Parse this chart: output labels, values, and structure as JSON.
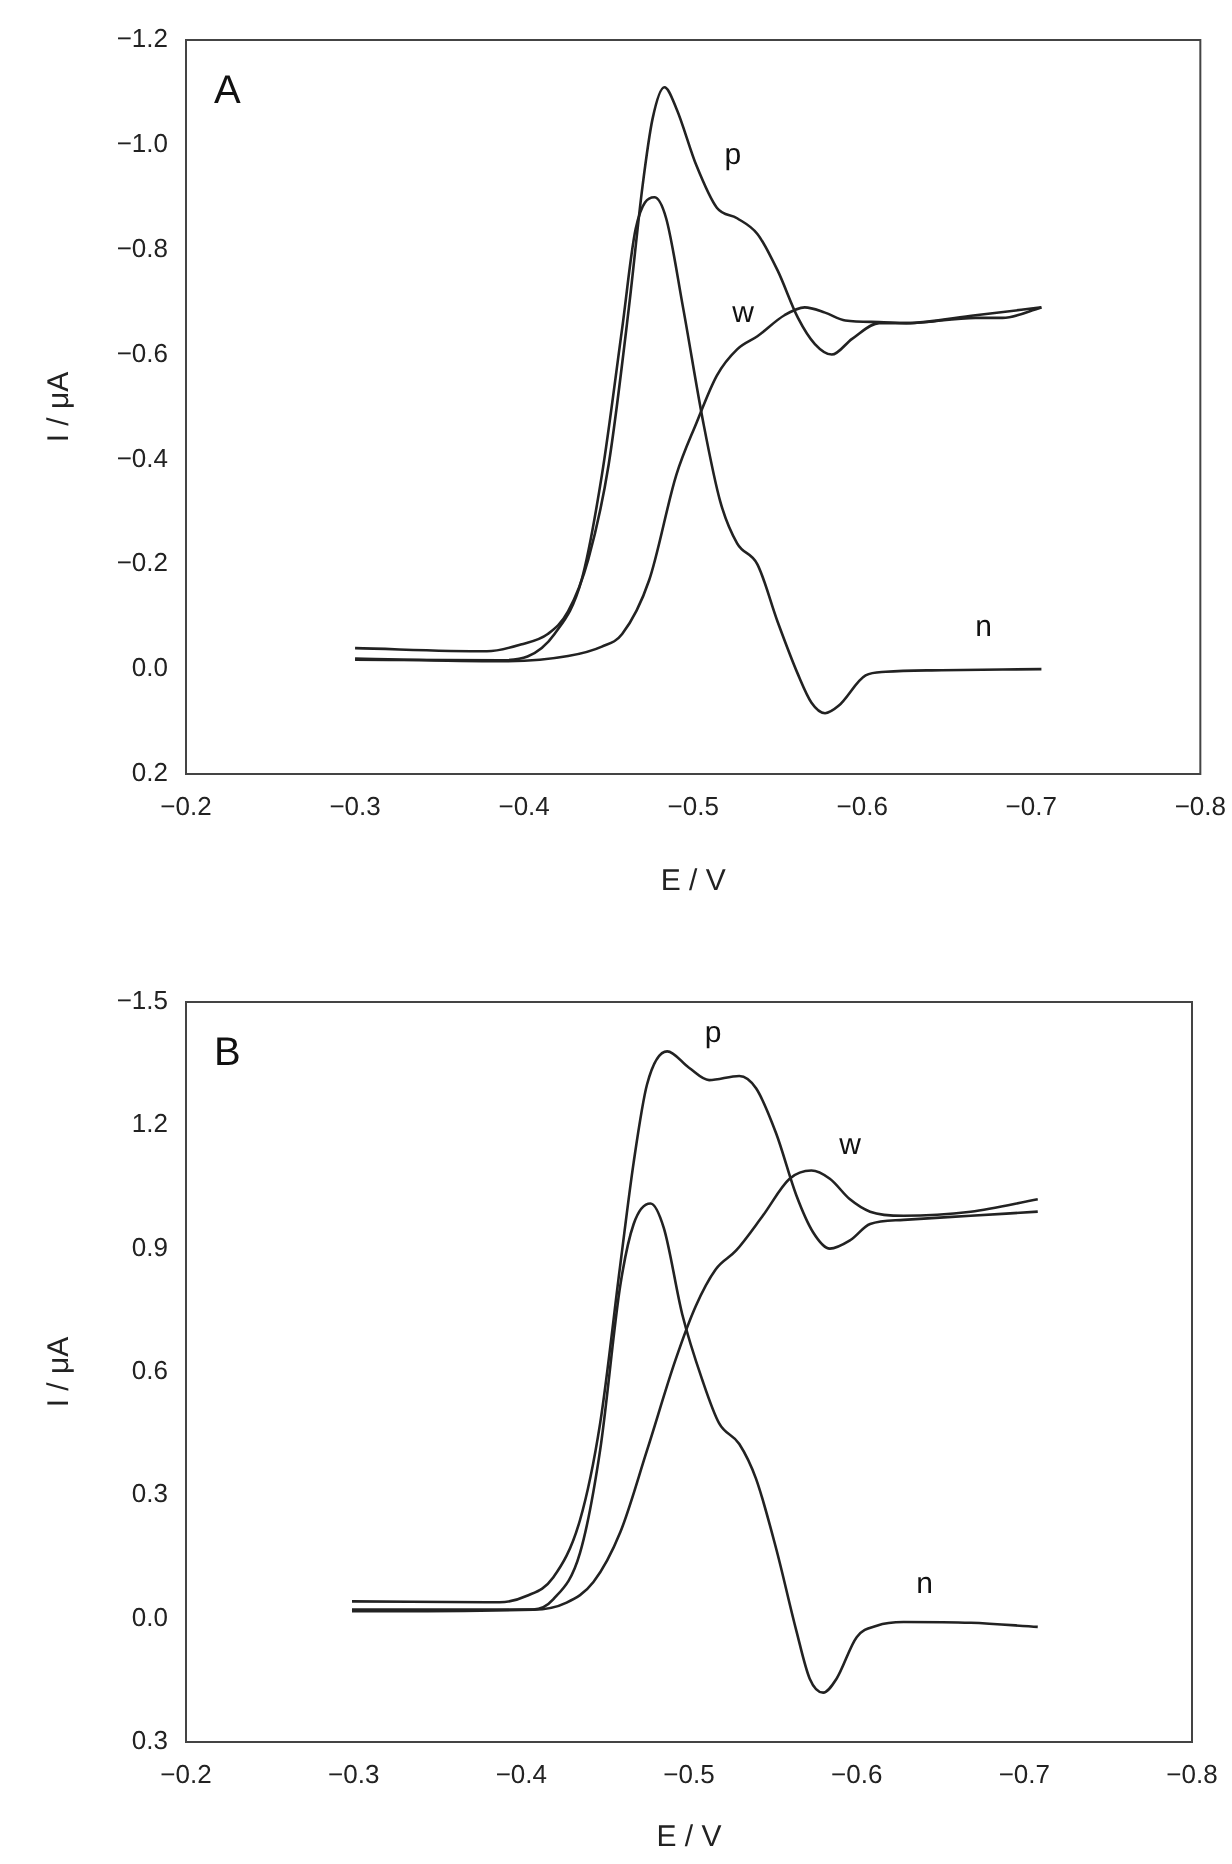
{
  "chart_data": [
    {
      "type": "line",
      "title": "A",
      "xlabel": "E / V",
      "ylabel": "I / μA",
      "marker": "none",
      "xlim": [
        -0.2,
        -0.8
      ],
      "ylim": [
        0.2,
        -1.2
      ],
      "xticks": [
        {
          "value": -0.2,
          "label": "−0.2"
        },
        {
          "value": -0.3,
          "label": "−0.3"
        },
        {
          "value": -0.4,
          "label": "−0.4"
        },
        {
          "value": -0.5,
          "label": "−0.5"
        },
        {
          "value": -0.6,
          "label": "−0.6"
        },
        {
          "value": -0.7,
          "label": "−0.7"
        },
        {
          "value": -0.8,
          "label": "−0.8"
        }
      ],
      "yticks": [
        {
          "value": -1.2,
          "label": "−1.2"
        },
        {
          "value": -1.0,
          "label": "−1.0"
        },
        {
          "value": -0.8,
          "label": "−0.8"
        },
        {
          "value": -0.6,
          "label": "−0.6"
        },
        {
          "value": -0.4,
          "label": "−0.4"
        },
        {
          "value": -0.2,
          "label": "−0.2"
        },
        {
          "value": 0,
          "label": "0.0"
        },
        {
          "value": 0.2,
          "label": "0.2"
        }
      ],
      "series": [
        {
          "name": "p",
          "color": "#222222",
          "x": [
            -0.3,
            -0.378,
            -0.398,
            -0.414,
            -0.426,
            -0.438,
            -0.45,
            -0.462,
            -0.47,
            -0.476,
            -0.483,
            -0.49,
            -0.502,
            -0.514,
            -0.526,
            -0.538,
            -0.55,
            -0.562,
            -0.572,
            -0.582,
            -0.594,
            -0.61,
            -0.626,
            -0.667,
            -0.683,
            -0.706
          ],
          "values": [
            -0.04,
            -0.034,
            -0.047,
            -0.067,
            -0.11,
            -0.21,
            -0.39,
            -0.69,
            -0.92,
            -1.05,
            -1.11,
            -1.07,
            -0.96,
            -0.88,
            -0.86,
            -0.83,
            -0.76,
            -0.67,
            -0.62,
            -0.6,
            -0.63,
            -0.66,
            -0.66,
            -0.67,
            -0.67,
            -0.69
          ]
        },
        {
          "name": "w",
          "color": "#222222",
          "x": [
            -0.3,
            -0.386,
            -0.426,
            -0.446,
            -0.458,
            -0.474,
            -0.49,
            -0.502,
            -0.514,
            -0.526,
            -0.538,
            -0.554,
            -0.566,
            -0.578,
            -0.59,
            -0.61,
            -0.626,
            -0.667,
            -0.706
          ],
          "values": [
            -0.02,
            -0.015,
            -0.025,
            -0.043,
            -0.067,
            -0.17,
            -0.37,
            -0.47,
            -0.56,
            -0.61,
            -0.635,
            -0.675,
            -0.69,
            -0.68,
            -0.665,
            -0.662,
            -0.66,
            -0.675,
            -0.69
          ]
        },
        {
          "name": "n",
          "color": "#222222",
          "x": [
            -0.3,
            -0.386,
            -0.402,
            -0.418,
            -0.434,
            -0.446,
            -0.458,
            -0.466,
            -0.477,
            -0.484,
            -0.494,
            -0.506,
            -0.516,
            -0.526,
            -0.538,
            -0.55,
            -0.562,
            -0.57,
            -0.578,
            -0.586,
            -0.602,
            -0.614,
            -0.647,
            -0.706
          ],
          "values": [
            -0.018,
            -0.017,
            -0.024,
            -0.067,
            -0.17,
            -0.37,
            -0.65,
            -0.84,
            -0.9,
            -0.86,
            -0.69,
            -0.47,
            -0.32,
            -0.24,
            -0.2,
            -0.09,
            0.01,
            0.064,
            0.084,
            0.07,
            0.012,
            0.005,
            0.002,
            0.0
          ]
        }
      ]
    },
    {
      "type": "line",
      "title": "B",
      "xlabel": "E / V",
      "ylabel": "I / μA",
      "marker": "none",
      "xlim": [
        -0.2,
        -0.8
      ],
      "ylim": [
        0.3,
        -1.5
      ],
      "xticks": [
        {
          "value": -0.2,
          "label": "−0.2"
        },
        {
          "value": -0.3,
          "label": "−0.3"
        },
        {
          "value": -0.4,
          "label": "−0.4"
        },
        {
          "value": -0.5,
          "label": "−0.5"
        },
        {
          "value": -0.6,
          "label": "−0.6"
        },
        {
          "value": -0.7,
          "label": "−0.7"
        },
        {
          "value": -0.8,
          "label": "−0.8"
        }
      ],
      "yticks": [
        {
          "value": -1.5,
          "label": "−1.5"
        },
        {
          "value": -1.2,
          "label": "1.2"
        },
        {
          "value": -0.9,
          "label": "0.9"
        },
        {
          "value": -0.6,
          "label": "0.6"
        },
        {
          "value": -0.3,
          "label": "0.3"
        },
        {
          "value": 0,
          "label": "0.0"
        },
        {
          "value": 0.3,
          "label": "0.3"
        }
      ],
      "series": [
        {
          "name": "p",
          "color": "#222222",
          "x": [
            -0.299,
            -0.387,
            -0.403,
            -0.419,
            -0.435,
            -0.447,
            -0.459,
            -0.467,
            -0.475,
            -0.487,
            -0.5,
            -0.512,
            -0.53,
            -0.54,
            -0.552,
            -0.564,
            -0.574,
            -0.584,
            -0.596,
            -0.608,
            -0.628,
            -0.668,
            -0.708
          ],
          "values": [
            -0.042,
            -0.04,
            -0.055,
            -0.1,
            -0.24,
            -0.475,
            -0.86,
            -1.11,
            -1.3,
            -1.38,
            -1.34,
            -1.31,
            -1.32,
            -1.29,
            -1.18,
            -1.03,
            -0.94,
            -0.9,
            -0.92,
            -0.96,
            -0.97,
            -0.98,
            -0.99
          ]
        },
        {
          "name": "w",
          "color": "#222222",
          "x": [
            -0.299,
            -0.407,
            -0.427,
            -0.443,
            -0.459,
            -0.475,
            -0.492,
            -0.504,
            -0.516,
            -0.528,
            -0.544,
            -0.56,
            -0.573,
            -0.584,
            -0.596,
            -0.608,
            -0.628,
            -0.668,
            -0.708
          ],
          "values": [
            -0.022,
            -0.022,
            -0.039,
            -0.089,
            -0.21,
            -0.41,
            -0.63,
            -0.76,
            -0.85,
            -0.895,
            -0.98,
            -1.07,
            -1.09,
            -1.07,
            -1.02,
            -0.99,
            -0.98,
            -0.99,
            -1.02
          ]
        },
        {
          "name": "n",
          "color": "#222222",
          "x": [
            -0.299,
            -0.407,
            -0.419,
            -0.435,
            -0.447,
            -0.459,
            -0.467,
            -0.477,
            -0.485,
            -0.496,
            -0.508,
            -0.518,
            -0.53,
            -0.54,
            -0.552,
            -0.564,
            -0.572,
            -0.58,
            -0.588,
            -0.6,
            -0.612,
            -0.628,
            -0.668,
            -0.708
          ],
          "values": [
            -0.018,
            -0.022,
            -0.047,
            -0.16,
            -0.41,
            -0.81,
            -0.96,
            -1.01,
            -0.95,
            -0.74,
            -0.58,
            -0.475,
            -0.425,
            -0.34,
            -0.17,
            0.029,
            0.146,
            0.18,
            0.146,
            0.045,
            0.017,
            0.008,
            0.01,
            0.02
          ]
        }
      ]
    }
  ]
}
